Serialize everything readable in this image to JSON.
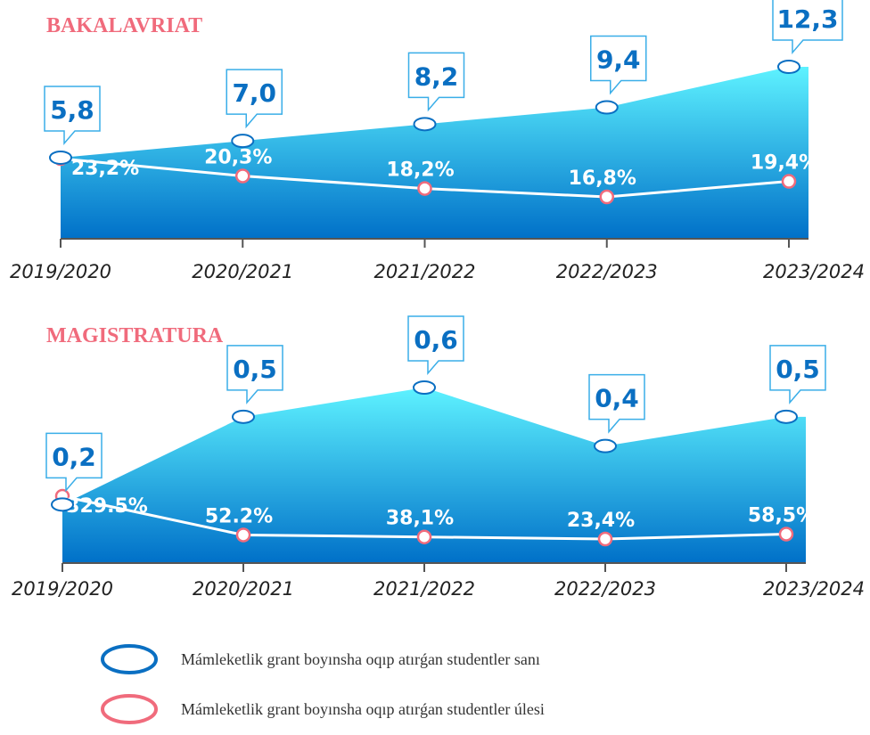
{
  "chart_data": [
    {
      "type": "area",
      "title": "BAKALAVRIAT",
      "categories": [
        "2019/2020",
        "2020/2021",
        "2021/2022",
        "2022/2023",
        "2023/2024"
      ],
      "series": [
        {
          "name": "Mámleketlik grant boyınsha oqıp atırǵan studentler sanı",
          "color": "#0a6fc2",
          "values": [
            5.8,
            7.0,
            8.2,
            9.4,
            12.3
          ],
          "value_labels": [
            "5,8",
            "7,0",
            "8,2",
            "9,4",
            "12,3"
          ]
        },
        {
          "name": "Mámleketlik grant boyınsha oqıp atırǵan studentler úlesi",
          "color": "#f06b7c",
          "values": [
            23.2,
            20.3,
            18.2,
            16.8,
            19.4
          ],
          "value_labels": [
            "23,2%",
            "20,3%",
            "18,2%",
            "16,8%",
            "19,4%"
          ]
        }
      ]
    },
    {
      "type": "area",
      "title": "MAGISTRATURA",
      "categories": [
        "2019/2020",
        "2020/2021",
        "2021/2022",
        "2022/2023",
        "2023/2024"
      ],
      "series": [
        {
          "color": "#0a6fc2",
          "values": [
            0.2,
            0.5,
            0.6,
            0.4,
            0.5
          ],
          "value_labels": [
            "0,2",
            "0,5",
            "0,6",
            "0,4",
            "0,5"
          ]
        },
        {
          "color": "#f06b7c",
          "values": [
            329.5,
            52.2,
            38.1,
            23.4,
            58.5
          ],
          "value_labels": [
            "329.5%",
            "52.2%",
            "38,1%",
            "23,4%",
            "58,5%"
          ]
        }
      ]
    }
  ]
}
